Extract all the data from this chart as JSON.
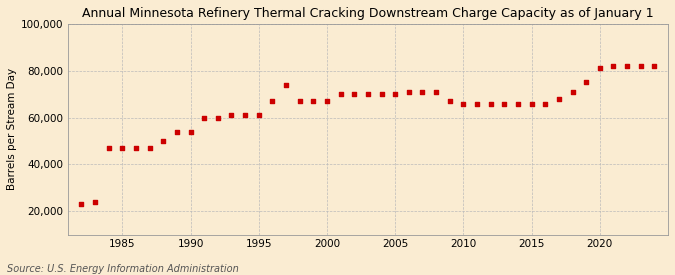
{
  "title": "Annual Minnesota Refinery Thermal Cracking Downstream Charge Capacity as of January 1",
  "ylabel": "Barrels per Stream Day",
  "source": "Source: U.S. Energy Information Administration",
  "background_color": "#faecd2",
  "plot_bg_color": "#faecd2",
  "marker_color": "#cc0000",
  "grid_color": "#bbbbbb",
  "years": [
    1982,
    1983,
    1984,
    1985,
    1986,
    1987,
    1988,
    1989,
    1990,
    1991,
    1992,
    1993,
    1994,
    1995,
    1996,
    1997,
    1998,
    1999,
    2000,
    2001,
    2002,
    2003,
    2004,
    2005,
    2006,
    2007,
    2008,
    2009,
    2010,
    2011,
    2012,
    2013,
    2014,
    2015,
    2016,
    2017,
    2018,
    2019,
    2020,
    2021,
    2022,
    2023,
    2024
  ],
  "values": [
    23000,
    24000,
    47000,
    47000,
    47000,
    47000,
    50000,
    54000,
    54000,
    60000,
    60000,
    61000,
    61000,
    61000,
    67000,
    74000,
    67000,
    67000,
    67000,
    70000,
    70000,
    70000,
    70000,
    70000,
    71000,
    71000,
    71000,
    67000,
    66000,
    66000,
    66000,
    66000,
    66000,
    66000,
    66000,
    68000,
    71000,
    75000,
    81000,
    82000,
    82000,
    82000,
    82000
  ],
  "ylim": [
    10000,
    100000
  ],
  "yticks": [
    20000,
    40000,
    60000,
    80000,
    100000
  ],
  "ytick_labels": [
    "20,000",
    "40,000",
    "60,000",
    "80,000",
    "100,000"
  ],
  "xlim": [
    1981,
    2025
  ],
  "xticks": [
    1985,
    1990,
    1995,
    2000,
    2005,
    2010,
    2015,
    2020
  ]
}
